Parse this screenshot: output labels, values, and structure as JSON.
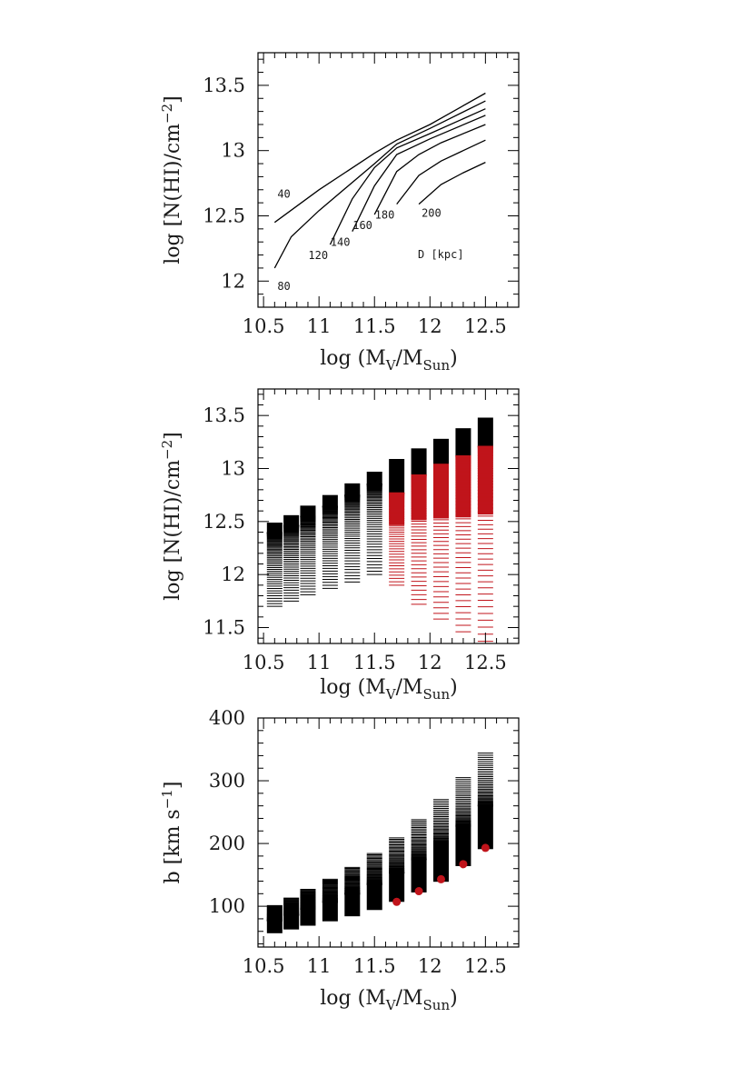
{
  "chart_data": [
    {
      "type": "line",
      "xlabel": "log (M_V/M_Sun)",
      "ylabel": "log [N(HI)/cm^-2]",
      "xlim": [
        10.45,
        12.8
      ],
      "ylim": [
        11.8,
        13.75
      ],
      "xticks": [
        10.5,
        11,
        11.5,
        12,
        12.5
      ],
      "xtick_labels": [
        "10.5",
        "11",
        "11.5",
        "12",
        "12.5"
      ],
      "yticks": [
        12,
        12.5,
        13,
        13.5
      ],
      "ytick_labels": [
        "12",
        "12.5",
        "13",
        "13.5"
      ],
      "annotation": "D [kpc]",
      "series": [
        {
          "name": "40",
          "x": [
            10.6,
            11.0,
            11.5,
            11.7,
            12.0,
            12.5
          ],
          "y": [
            12.45,
            12.7,
            12.98,
            13.08,
            13.2,
            13.44
          ]
        },
        {
          "name": "80",
          "x": [
            10.6,
            10.75,
            11.0,
            11.5,
            11.7,
            12.0,
            12.5
          ],
          "y": [
            12.1,
            12.34,
            12.54,
            12.9,
            13.05,
            13.17,
            13.38
          ]
        },
        {
          "name": "120",
          "x": [
            11.1,
            11.3,
            11.5,
            11.7,
            12.0,
            12.5
          ],
          "y": [
            12.28,
            12.63,
            12.87,
            13.02,
            13.13,
            13.32
          ]
        },
        {
          "name": "140",
          "x": [
            11.3,
            11.5,
            11.7,
            12.0,
            12.5
          ],
          "y": [
            12.38,
            12.73,
            12.97,
            13.09,
            13.27
          ]
        },
        {
          "name": "160",
          "x": [
            11.5,
            11.7,
            11.9,
            12.1,
            12.5
          ],
          "y": [
            12.51,
            12.84,
            12.97,
            13.06,
            13.2
          ]
        },
        {
          "name": "180",
          "x": [
            11.7,
            11.9,
            12.1,
            12.3,
            12.5
          ],
          "y": [
            12.59,
            12.81,
            12.92,
            13.0,
            13.08
          ]
        },
        {
          "name": "200",
          "x": [
            11.9,
            12.1,
            12.3,
            12.5
          ],
          "y": [
            12.59,
            12.74,
            12.83,
            12.91
          ]
        }
      ]
    },
    {
      "type": "scatter",
      "xlabel": "log (M_V/M_Sun)",
      "ylabel": "log [N(HI)/cm^-2]",
      "xlim": [
        10.45,
        12.8
      ],
      "ylim": [
        11.35,
        13.75
      ],
      "xticks": [
        10.5,
        11,
        11.5,
        12,
        12.5
      ],
      "xtick_labels": [
        "10.5",
        "11",
        "11.5",
        "12",
        "12.5"
      ],
      "yticks": [
        11.5,
        12,
        12.5,
        13,
        13.5
      ],
      "ytick_labels": [
        "11.5",
        "12",
        "12.5",
        "13",
        "13.5"
      ],
      "mass_bins": [
        10.6,
        10.75,
        10.9,
        11.1,
        11.3,
        11.5,
        11.7,
        11.9,
        12.1,
        12.3,
        12.5
      ],
      "column_top": [
        12.49,
        12.56,
        12.65,
        12.75,
        12.86,
        12.97,
        13.09,
        13.19,
        13.28,
        13.38,
        13.48
      ],
      "column_bottom": [
        11.7,
        11.75,
        11.81,
        11.87,
        11.93,
        12.0,
        11.9,
        11.72,
        11.58,
        11.46,
        11.37
      ],
      "red_top": [
        null,
        null,
        null,
        null,
        null,
        null,
        12.77,
        12.94,
        13.04,
        13.12,
        13.21
      ],
      "colors": {
        "black": "#000000",
        "red": "#c0141b"
      }
    },
    {
      "type": "scatter",
      "xlabel": "log (M_V/M_Sun)",
      "ylabel": "b [km s^-1]",
      "xlim": [
        10.45,
        12.8
      ],
      "ylim": [
        35,
        400
      ],
      "xticks": [
        10.5,
        11,
        11.5,
        12,
        12.5
      ],
      "xtick_labels": [
        "10.5",
        "11",
        "11.5",
        "12",
        "12.5"
      ],
      "yticks": [
        100,
        200,
        300,
        400
      ],
      "ytick_labels": [
        "100",
        "200",
        "300",
        "400"
      ],
      "mass_bins": [
        10.6,
        10.75,
        10.9,
        11.1,
        11.3,
        11.5,
        11.7,
        11.9,
        12.1,
        12.3,
        12.5
      ],
      "column_top": [
        101,
        113,
        127,
        143,
        162,
        184,
        209,
        238,
        270,
        305,
        344
      ],
      "column_bottom": [
        57,
        63,
        69,
        76,
        84,
        94,
        107,
        122,
        139,
        164,
        191
      ],
      "red_points": [
        {
          "x": 11.7,
          "y": 107
        },
        {
          "x": 11.9,
          "y": 124
        },
        {
          "x": 12.1,
          "y": 143
        },
        {
          "x": 12.3,
          "y": 167
        },
        {
          "x": 12.5,
          "y": 193
        }
      ],
      "colors": {
        "black": "#000000",
        "red": "#c0141b"
      }
    }
  ]
}
